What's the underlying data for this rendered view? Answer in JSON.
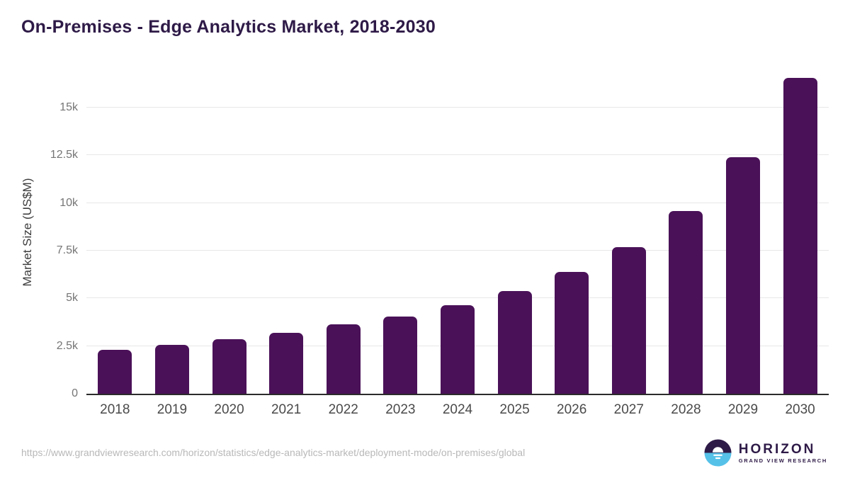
{
  "page": {
    "title": "On-Premises - Edge Analytics Market, 2018-2030",
    "source_url": "https://www.grandviewresearch.com/horizon/statistics/edge-analytics-market/deployment-mode/on-premises/global"
  },
  "logo": {
    "name": "HORIZON",
    "subtitle": "GRAND VIEW RESEARCH",
    "circle_top_color": "#2e1a47",
    "circle_bottom_color": "#56c1e8"
  },
  "chart_data": {
    "type": "bar",
    "title": "On-Premises - Edge Analytics Market, 2018-2030",
    "xlabel": "",
    "ylabel": "Market Size (US$M)",
    "categories": [
      "2018",
      "2019",
      "2020",
      "2021",
      "2022",
      "2023",
      "2024",
      "2025",
      "2026",
      "2027",
      "2028",
      "2029",
      "2030"
    ],
    "values": [
      2300,
      2550,
      2850,
      3200,
      3630,
      4050,
      4630,
      5400,
      6370,
      7670,
      9580,
      12380,
      16550
    ],
    "ylim": [
      0,
      17000
    ],
    "yticks": [
      0,
      2500,
      5000,
      7500,
      10000,
      12500,
      15000
    ],
    "ytick_labels": [
      "0",
      "2.5k",
      "5k",
      "7.5k",
      "10k",
      "12.5k",
      "15k"
    ],
    "bar_color": "#4a1158",
    "grid": true,
    "legend": false
  }
}
